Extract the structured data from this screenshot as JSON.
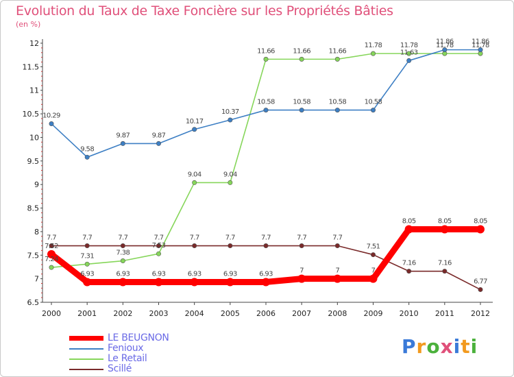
{
  "title": "Evolution du Taux de Taxe Foncière sur les Propriétés Bâties",
  "unit": "(en %)",
  "brand": "Proxiti",
  "brand_colors": [
    "#3a7ad8",
    "#f29a1f",
    "#4bb13c",
    "#e0507a",
    "#3a7ad8",
    "#f29a1f",
    "#4bb13c"
  ],
  "chart_data": {
    "type": "line",
    "title": "Evolution du Taux de Taxe Foncière sur les Propriétés Bâties",
    "ylabel": "(en %)",
    "xlabel": "",
    "ylim": [
      6.5,
      12
    ],
    "grid": false,
    "legend_position": "bottom-left",
    "x": [
      "2000",
      "2001",
      "2002",
      "2003",
      "2004",
      "2005",
      "2006",
      "2007",
      "2008",
      "2009",
      "2010",
      "2011",
      "2012"
    ],
    "y_ticks": [
      "6.5",
      "7",
      "7.5",
      "8",
      "8.5",
      "9",
      "9.5",
      "10",
      "10.5",
      "11",
      "11.5",
      "12"
    ],
    "series": [
      {
        "name": "LE BEUGNON",
        "color": "#ff0000",
        "values": [
          7.52,
          6.93,
          6.93,
          6.93,
          6.93,
          6.93,
          6.93,
          7,
          7,
          7,
          8.05,
          8.05,
          8.05
        ],
        "labels": [
          "7.52",
          "6.93",
          "6.93",
          "6.93",
          "6.93",
          "6.93",
          "6.93",
          "7",
          "7",
          "7",
          "8.05",
          "8.05",
          "8.05"
        ]
      },
      {
        "name": "Fenioux",
        "color": "#3d7fc4",
        "values": [
          10.29,
          9.58,
          9.87,
          9.87,
          10.17,
          10.37,
          10.58,
          10.58,
          10.58,
          10.58,
          11.63,
          11.86,
          11.86
        ],
        "labels": [
          "10.29",
          "9.58",
          "9.87",
          "9.87",
          "10.17",
          "10.37",
          "10.58",
          "10.58",
          "10.58",
          "10.58",
          "11.63",
          "11.86",
          "11.86"
        ]
      },
      {
        "name": "Le Retail",
        "color": "#86d65a",
        "values": [
          7.24,
          7.31,
          7.38,
          7.53,
          9.04,
          9.04,
          11.66,
          11.66,
          11.66,
          11.78,
          11.78,
          11.78,
          11.78
        ],
        "labels": [
          "7.24",
          "7.31",
          "7.38",
          "7.53",
          "9.04",
          "9.04",
          "11.66",
          "11.66",
          "11.66",
          "11.78",
          "11.78",
          "11.78",
          "11.78"
        ]
      },
      {
        "name": "Scillé",
        "color": "#7a2a2a",
        "values": [
          7.7,
          7.7,
          7.7,
          7.7,
          7.7,
          7.7,
          7.7,
          7.7,
          7.7,
          7.51,
          7.16,
          7.16,
          6.77
        ],
        "labels": [
          "7.7",
          "7.7",
          "7.7",
          "7.7",
          "7.7",
          "7.7",
          "7.7",
          "7.7",
          "7.7",
          "7.51",
          "7.16",
          "7.16",
          "6.77"
        ]
      }
    ]
  }
}
